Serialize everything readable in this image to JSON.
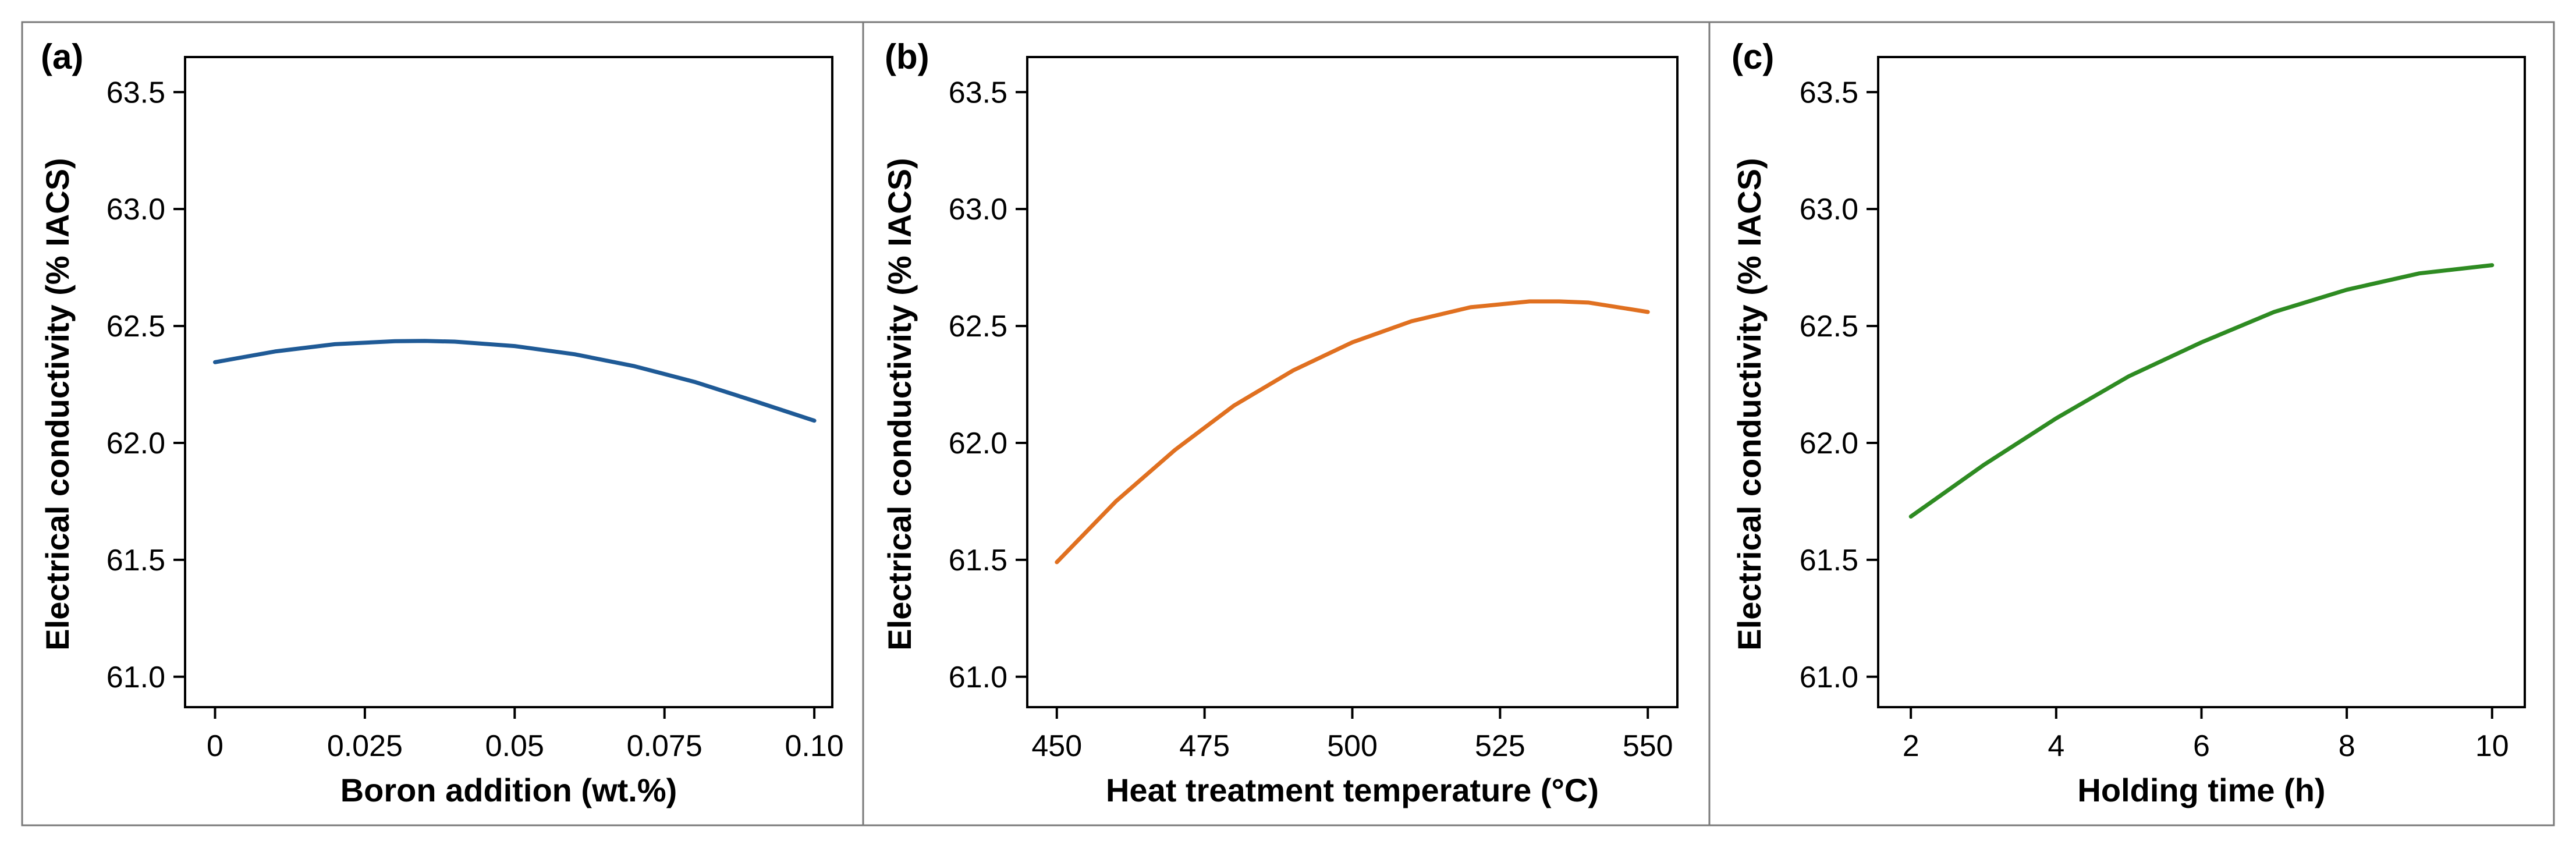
{
  "chart_data": [
    {
      "type": "line",
      "panel_label": "(a)",
      "xlabel": "Boron addition (wt.%)",
      "ylabel": "Electrical conductivity (% IACS)",
      "xlim": [
        -0.005,
        0.103
      ],
      "ylim": [
        60.87,
        63.65
      ],
      "xticks": [
        0,
        0.025,
        0.05,
        0.075,
        0.1
      ],
      "xtick_labels": [
        "0",
        "0.025",
        "0.05",
        "0.075",
        "0.10"
      ],
      "yticks": [
        61.0,
        61.5,
        62.0,
        62.5,
        63.0,
        63.5
      ],
      "ytick_labels": [
        "61.0",
        "61.5",
        "62.0",
        "62.5",
        "63.0",
        "63.5"
      ],
      "grid": false,
      "series": [
        {
          "color": "#1f5a96",
          "x": [
            0,
            0.01,
            0.02,
            0.03,
            0.035,
            0.04,
            0.05,
            0.06,
            0.07,
            0.08,
            0.09,
            0.1
          ],
          "y": [
            62.345,
            62.391,
            62.422,
            62.435,
            62.436,
            62.433,
            62.414,
            62.379,
            62.328,
            62.261,
            62.179,
            62.095
          ]
        }
      ]
    },
    {
      "type": "line",
      "panel_label": "(b)",
      "xlabel": "Heat treatment temperature (°C)",
      "ylabel": "Electrical conductivity (% IACS)",
      "xlim": [
        445,
        555
      ],
      "ylim": [
        60.87,
        63.65
      ],
      "xticks": [
        450,
        475,
        500,
        525,
        550
      ],
      "xtick_labels": [
        "450",
        "475",
        "500",
        "525",
        "550"
      ],
      "yticks": [
        61.0,
        61.5,
        62.0,
        62.5,
        63.0,
        63.5
      ],
      "ytick_labels": [
        "61.0",
        "61.5",
        "62.0",
        "62.5",
        "63.0",
        "63.5"
      ],
      "grid": false,
      "series": [
        {
          "color": "#e07020",
          "x": [
            450,
            460,
            470,
            480,
            490,
            500,
            510,
            520,
            530,
            535,
            540,
            550
          ],
          "y": [
            61.49,
            61.75,
            61.97,
            62.16,
            62.31,
            62.43,
            62.52,
            62.58,
            62.605,
            62.605,
            62.6,
            62.56
          ]
        }
      ]
    },
    {
      "type": "line",
      "panel_label": "(c)",
      "xlabel": "Holding time (h)",
      "ylabel": "Electrical conductivity (% IACS)",
      "xlim": [
        1.55,
        10.45
      ],
      "ylim": [
        60.87,
        63.65
      ],
      "xticks": [
        2,
        4,
        6,
        8,
        10
      ],
      "xtick_labels": [
        "2",
        "4",
        "6",
        "8",
        "10"
      ],
      "yticks": [
        61.0,
        61.5,
        62.0,
        62.5,
        63.0,
        63.5
      ],
      "ytick_labels": [
        "61.0",
        "61.5",
        "62.0",
        "62.5",
        "63.0",
        "63.5"
      ],
      "grid": false,
      "series": [
        {
          "color": "#2e8b22",
          "x": [
            2,
            3,
            4,
            5,
            6,
            7,
            8,
            9,
            10
          ],
          "y": [
            61.685,
            61.905,
            62.105,
            62.285,
            62.43,
            62.56,
            62.655,
            62.725,
            62.76
          ]
        }
      ]
    }
  ]
}
